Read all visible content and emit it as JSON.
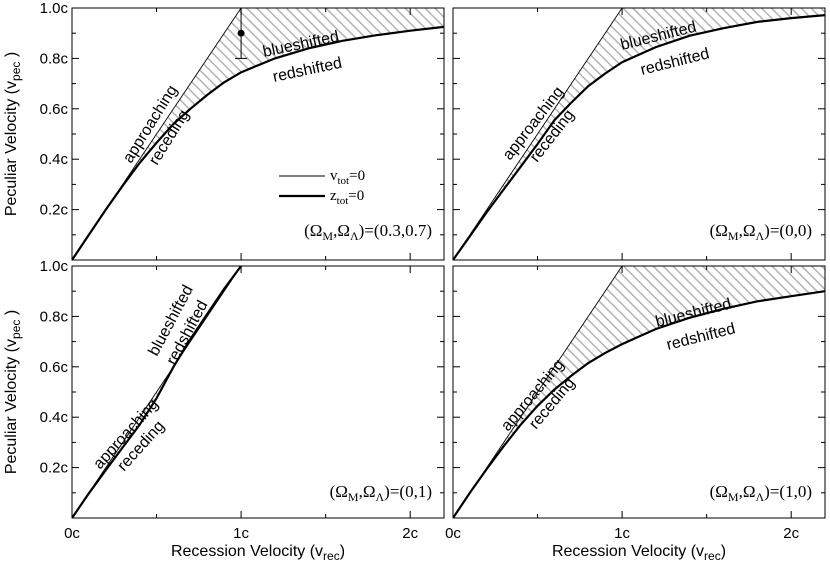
{
  "chart_data": {
    "type": "line",
    "x_axis_label": "Recession Velocity (v",
    "x_axis_label_sub": "rec",
    "y_axis_label": "Peculiar Velocity (v",
    "y_axis_label_sub": "pec",
    "x_ticks": [
      {
        "value": 0,
        "label": "0c"
      },
      {
        "value": 1,
        "label": "1c"
      },
      {
        "value": 2,
        "label": "2c"
      }
    ],
    "y_ticks": [
      {
        "value": 0.2,
        "label": "0.2c"
      },
      {
        "value": 0.4,
        "label": "0.4c"
      },
      {
        "value": 0.6,
        "label": "0.6c"
      },
      {
        "value": 0.8,
        "label": "0.8c"
      },
      {
        "value": 1.0,
        "label": "1.0c"
      }
    ],
    "xlim": [
      0,
      2.2
    ],
    "ylim": [
      0,
      1.0
    ],
    "legend": {
      "vtot": {
        "main": "v",
        "sub": "tot",
        "rest": "=0"
      },
      "ztot": {
        "main": "z",
        "sub": "tot",
        "rest": "=0"
      }
    },
    "region_labels": {
      "approaching": "approaching",
      "receding": "receding",
      "blueshifted": "blueshifted",
      "redshifted": "redshifted"
    },
    "panels": [
      {
        "id": "top-left",
        "omega_m": "0.3",
        "omega_l": "0.7",
        "vtot_zero": {
          "x": [
            0,
            1.0
          ],
          "y": [
            0,
            1.0
          ]
        },
        "ztot_zero": {
          "x": [
            0,
            0.1,
            0.2,
            0.3,
            0.4,
            0.5,
            0.6,
            0.7,
            0.8,
            0.9,
            1.0,
            1.2,
            1.4,
            1.6,
            1.8,
            2.0,
            2.2
          ],
          "y": [
            0,
            0.1,
            0.2,
            0.295,
            0.385,
            0.465,
            0.54,
            0.6,
            0.655,
            0.705,
            0.745,
            0.8,
            0.84,
            0.87,
            0.892,
            0.91,
            0.925
          ]
        },
        "error_point": {
          "x": 1.0,
          "y": 0.9,
          "y_low": 0.8,
          "y_high": 1.0
        }
      },
      {
        "id": "top-right",
        "omega_m": "0",
        "omega_l": "0",
        "vtot_zero": {
          "x": [
            0,
            1.0
          ],
          "y": [
            0,
            1.0
          ]
        },
        "ztot_zero": {
          "x": [
            0,
            0.1,
            0.2,
            0.3,
            0.4,
            0.5,
            0.6,
            0.7,
            0.8,
            0.9,
            1.0,
            1.2,
            1.4,
            1.6,
            1.8,
            2.0,
            2.2
          ],
          "y": [
            0,
            0.095,
            0.19,
            0.28,
            0.37,
            0.46,
            0.555,
            0.625,
            0.69,
            0.74,
            0.785,
            0.845,
            0.89,
            0.92,
            0.945,
            0.96,
            0.972
          ]
        }
      },
      {
        "id": "bottom-left",
        "omega_m": "0",
        "omega_l": "1",
        "vtot_zero": {
          "x": [
            0,
            1.0
          ],
          "y": [
            0,
            1.0
          ]
        },
        "ztot_zero": {
          "x": [
            0,
            0.1,
            0.2,
            0.3,
            0.4,
            0.5,
            0.6,
            0.7,
            0.8,
            0.9,
            1.0
          ],
          "y": [
            0,
            0.098,
            0.19,
            0.28,
            0.37,
            0.475,
            0.6,
            0.71,
            0.81,
            0.91,
            1.0
          ]
        }
      },
      {
        "id": "bottom-right",
        "omega_m": "1",
        "omega_l": "0",
        "vtot_zero": {
          "x": [
            0,
            1.0
          ],
          "y": [
            0,
            1.0
          ]
        },
        "ztot_zero": {
          "x": [
            0,
            0.1,
            0.2,
            0.3,
            0.4,
            0.5,
            0.6,
            0.7,
            0.8,
            0.9,
            1.0,
            1.2,
            1.4,
            1.6,
            1.8,
            2.0,
            2.2
          ],
          "y": [
            0,
            0.1,
            0.195,
            0.285,
            0.37,
            0.445,
            0.51,
            0.565,
            0.615,
            0.655,
            0.69,
            0.75,
            0.795,
            0.83,
            0.86,
            0.88,
            0.9
          ]
        }
      }
    ]
  }
}
